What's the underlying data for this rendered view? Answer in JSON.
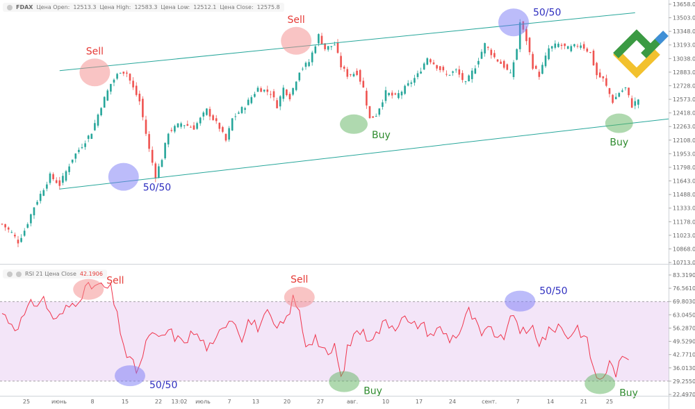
{
  "price_legend": {
    "symbol": "FDAX",
    "open_label": "Цена Open:",
    "open_value": "12513.3",
    "high_label": "Цена High:",
    "high_value": "12583.3",
    "low_label": "Цена Low:",
    "low_value": "12512.1",
    "close_label": "Цена Close:",
    "close_value": "12575.8"
  },
  "rsi_legend": {
    "label": "RSI 21 Цена Close",
    "value": "42.1906"
  },
  "colors": {
    "up": "#26a69a",
    "down": "#ef5350",
    "channel": "#26a69a",
    "rsi": "#f0344c",
    "rsi_band": "#f3e5f8",
    "sell": "#f48a8a",
    "buy": "#5fb35f",
    "neutral": "#7a7af5",
    "sell_text": "#e53935",
    "buy_text": "#2e8b2e",
    "neutral_text": "#3030c0"
  },
  "chart_data": [
    {
      "type": "candlestick",
      "x_tick_labels": [
        "25",
        "июнь",
        "8",
        "15",
        "22",
        "13:02",
        "июль",
        "7",
        "13",
        "20",
        "27",
        "авг.",
        "10",
        "17",
        "24",
        "сент.",
        "7",
        "14",
        "21",
        "25"
      ],
      "y_tick_labels": [
        "13658.0",
        "13503.0",
        "13348.0",
        "13193.0",
        "13038.0",
        "12883.0",
        "12728.0",
        "12573.0",
        "12418.0",
        "12263.0",
        "12108.0",
        "11953.0",
        "11798.0",
        "11643.0",
        "11488.0",
        "11333.0",
        "11178.0",
        "11023.0",
        "10868.0",
        "10713.0"
      ],
      "ylim": [
        10713,
        13658
      ],
      "anchors": [
        [
          0,
          11150
        ],
        [
          3,
          11050
        ],
        [
          5,
          10950
        ],
        [
          7,
          11080
        ],
        [
          10,
          11350
        ],
        [
          15,
          11700
        ],
        [
          18,
          11600
        ],
        [
          22,
          11900
        ],
        [
          28,
          12200
        ],
        [
          31,
          12500
        ],
        [
          34,
          12750
        ],
        [
          37,
          12900
        ],
        [
          39,
          12870
        ],
        [
          41,
          12700
        ],
        [
          43,
          12550
        ],
        [
          46,
          12000
        ],
        [
          48,
          11700
        ],
        [
          50,
          11900
        ],
        [
          52,
          12200
        ],
        [
          56,
          12300
        ],
        [
          60,
          12250
        ],
        [
          64,
          12450
        ],
        [
          68,
          12250
        ],
        [
          70,
          12100
        ],
        [
          72,
          12350
        ],
        [
          76,
          12500
        ],
        [
          80,
          12700
        ],
        [
          84,
          12650
        ],
        [
          86,
          12500
        ],
        [
          88,
          12700
        ],
        [
          90,
          12600
        ],
        [
          93,
          12900
        ],
        [
          96,
          13000
        ],
        [
          99,
          13300
        ],
        [
          101,
          13150
        ],
        [
          104,
          13200
        ],
        [
          106,
          12950
        ],
        [
          108,
          12850
        ],
        [
          111,
          12880
        ],
        [
          113,
          12700
        ],
        [
          115,
          12350
        ],
        [
          117,
          12400
        ],
        [
          120,
          12650
        ],
        [
          123,
          12600
        ],
        [
          126,
          12700
        ],
        [
          130,
          12850
        ],
        [
          133,
          13050
        ],
        [
          136,
          12950
        ],
        [
          139,
          12850
        ],
        [
          142,
          12900
        ],
        [
          145,
          12750
        ],
        [
          148,
          12950
        ],
        [
          151,
          13200
        ],
        [
          154,
          13050
        ],
        [
          157,
          12950
        ],
        [
          159,
          12850
        ],
        [
          161,
          13150
        ],
        [
          162,
          13450
        ],
        [
          164,
          13250
        ],
        [
          166,
          12950
        ],
        [
          168,
          12850
        ],
        [
          171,
          13150
        ],
        [
          174,
          13200
        ],
        [
          177,
          13150
        ],
        [
          181,
          13200
        ],
        [
          184,
          13100
        ],
        [
          186,
          12850
        ],
        [
          188,
          12800
        ],
        [
          191,
          12550
        ],
        [
          193,
          12650
        ],
        [
          195,
          12700
        ],
        [
          197,
          12500
        ],
        [
          199,
          12575
        ]
      ],
      "channel_lines": [
        {
          "from": [
            18,
            12900
          ],
          "to": [
            198,
            13560
          ]
        },
        {
          "from": [
            18,
            11550
          ],
          "to": [
            212,
            12350
          ]
        }
      ],
      "annotations": [
        {
          "text": "Sell",
          "kind": "sell",
          "x": 29,
          "y": 12880
        },
        {
          "text": "50/50",
          "kind": "neutral",
          "x": 38,
          "y": 11690
        },
        {
          "text": "Sell",
          "kind": "sell",
          "x": 92,
          "y": 13240
        },
        {
          "text": "Buy",
          "kind": "buy",
          "x": 110,
          "y": 12290
        },
        {
          "text": "50/50",
          "kind": "neutral",
          "x": 160,
          "y": 13450
        },
        {
          "text": "Buy",
          "kind": "buy",
          "x": 193,
          "y": 12300
        }
      ]
    },
    {
      "type": "line",
      "y_tick_labels": [
        "83.3190",
        "76.5610",
        "69.8030",
        "63.0450",
        "56.2870",
        "49.5290",
        "42.7710",
        "36.0130",
        "29.2550",
        "22.4970"
      ],
      "ylim": [
        22.497,
        83.319
      ],
      "overbought": 69.803,
      "oversold": 29.255,
      "anchors": [
        [
          0,
          64
        ],
        [
          4,
          57
        ],
        [
          6,
          60
        ],
        [
          9,
          68
        ],
        [
          13,
          71
        ],
        [
          15,
          64
        ],
        [
          17,
          60
        ],
        [
          20,
          66
        ],
        [
          23,
          70
        ],
        [
          26,
          76
        ],
        [
          29,
          78
        ],
        [
          32,
          77
        ],
        [
          34,
          76
        ],
        [
          36,
          62
        ],
        [
          39,
          42
        ],
        [
          42,
          35
        ],
        [
          44,
          41
        ],
        [
          46,
          54
        ],
        [
          49,
          50
        ],
        [
          52,
          55
        ],
        [
          56,
          49
        ],
        [
          60,
          54
        ],
        [
          64,
          47
        ],
        [
          66,
          46
        ],
        [
          69,
          58
        ],
        [
          72,
          62
        ],
        [
          75,
          52
        ],
        [
          77,
          60
        ],
        [
          80,
          57
        ],
        [
          83,
          63
        ],
        [
          86,
          55
        ],
        [
          89,
          61
        ],
        [
          91,
          71
        ],
        [
          93,
          64
        ],
        [
          95,
          48
        ],
        [
          98,
          52
        ],
        [
          100,
          46
        ],
        [
          102,
          41
        ],
        [
          104,
          48
        ],
        [
          106,
          30
        ],
        [
          108,
          45
        ],
        [
          111,
          56
        ],
        [
          114,
          52
        ],
        [
          117,
          53
        ],
        [
          120,
          60
        ],
        [
          123,
          57
        ],
        [
          125,
          63
        ],
        [
          128,
          57
        ],
        [
          131,
          59
        ],
        [
          134,
          53
        ],
        [
          137,
          56
        ],
        [
          140,
          51
        ],
        [
          143,
          54
        ],
        [
          146,
          65
        ],
        [
          148,
          59
        ],
        [
          150,
          52
        ],
        [
          153,
          56
        ],
        [
          156,
          50
        ],
        [
          158,
          55
        ],
        [
          160,
          64
        ],
        [
          162,
          56
        ],
        [
          164,
          52
        ],
        [
          166,
          57
        ],
        [
          168,
          49
        ],
        [
          171,
          54
        ],
        [
          174,
          58
        ],
        [
          177,
          52
        ],
        [
          180,
          57
        ],
        [
          183,
          49
        ],
        [
          186,
          30
        ],
        [
          188,
          32
        ],
        [
          190,
          38
        ],
        [
          192,
          34
        ],
        [
          194,
          40
        ],
        [
          196,
          42
        ]
      ],
      "annotations": [
        {
          "text": "Sell",
          "kind": "sell",
          "x": 27,
          "y": 76
        },
        {
          "text": "50/50",
          "kind": "neutral",
          "x": 40,
          "y": 32
        },
        {
          "text": "Sell",
          "kind": "sell",
          "x": 93,
          "y": 72
        },
        {
          "text": "Buy",
          "kind": "buy",
          "x": 107,
          "y": 29
        },
        {
          "text": "50/50",
          "kind": "neutral",
          "x": 162,
          "y": 70
        },
        {
          "text": "Buy",
          "kind": "buy",
          "x": 187,
          "y": 28
        }
      ]
    }
  ]
}
